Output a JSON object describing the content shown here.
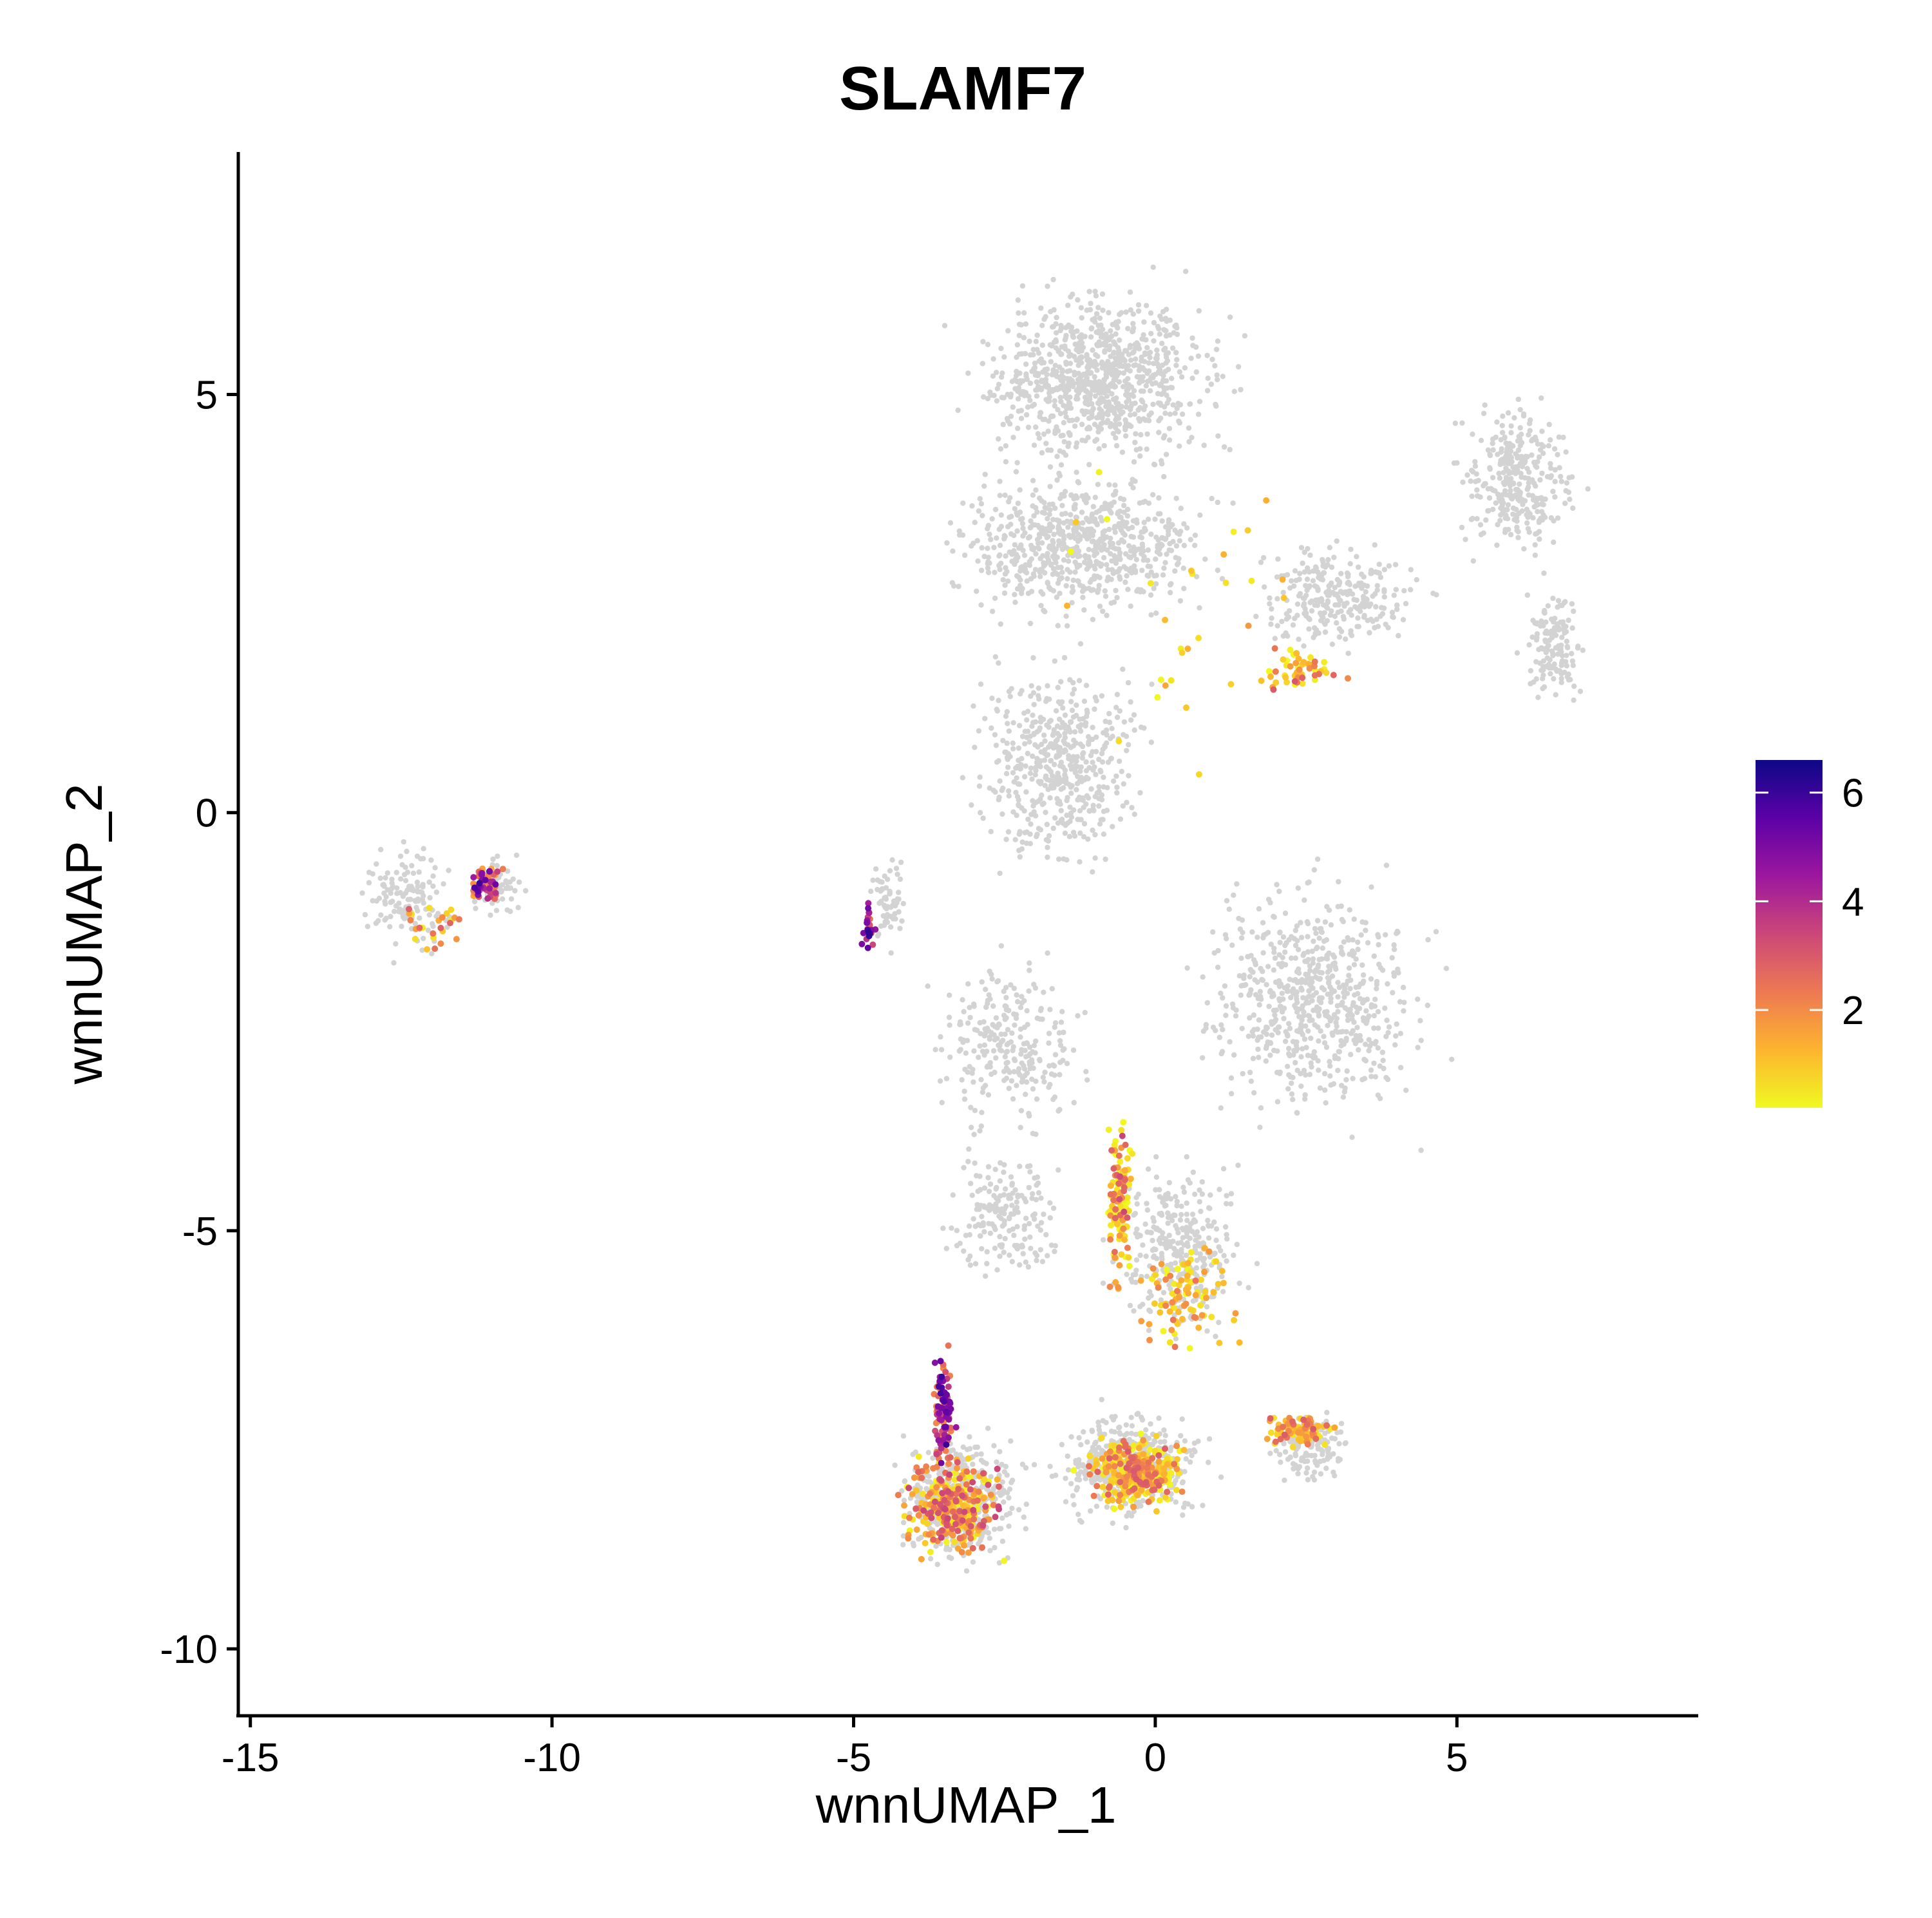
{
  "chart_data": {
    "type": "scatter",
    "title": "SLAMF7",
    "xlabel": "wnnUMAP_1",
    "ylabel": "wnnUMAP_2",
    "xlim": [
      -15.2,
      9.0
    ],
    "ylim": [
      -10.8,
      7.9
    ],
    "xticks": [
      {
        "value": -15,
        "label": "-15"
      },
      {
        "value": -10,
        "label": "-10"
      },
      {
        "value": -5,
        "label": "-5"
      },
      {
        "value": 0,
        "label": "0"
      },
      {
        "value": 5,
        "label": "5"
      }
    ],
    "yticks": [
      {
        "value": 5,
        "label": "5"
      },
      {
        "value": 0,
        "label": "0"
      },
      {
        "value": -5,
        "label": "-5"
      },
      {
        "value": -10,
        "label": "-10"
      }
    ],
    "grid": false,
    "background_color": "#d3d3d3",
    "colorscale": [
      "#f0f921",
      "#fdb42f",
      "#ed7953",
      "#cc4778",
      "#9c179e",
      "#5c01a6",
      "#0d0887"
    ],
    "legend": {
      "position": "right",
      "min": 0.2,
      "max": 6.6,
      "ticks": [
        {
          "value": 2,
          "label": "2"
        },
        {
          "value": 4,
          "label": "4"
        },
        {
          "value": 6,
          "label": "6"
        }
      ]
    },
    "background_regions": [
      {
        "name": "left-island",
        "cx": -12.4,
        "cy": -1.0,
        "rx": 1.1,
        "ry": 0.95,
        "n": 140
      },
      {
        "name": "left-island-right",
        "cx": -10.9,
        "cy": -0.9,
        "rx": 0.6,
        "ry": 0.55,
        "n": 70
      },
      {
        "name": "small-spur",
        "cx": -4.4,
        "cy": -1.1,
        "rx": 0.5,
        "ry": 0.85,
        "n": 60
      },
      {
        "name": "top-main-upper",
        "cx": -0.9,
        "cy": 5.2,
        "rx": 3.1,
        "ry": 1.6,
        "n": 900
      },
      {
        "name": "top-main-lower",
        "cx": -1.2,
        "cy": 3.2,
        "rx": 3.3,
        "ry": 1.3,
        "n": 700
      },
      {
        "name": "top-main-stalk",
        "cx": -1.6,
        "cy": 0.6,
        "rx": 2.2,
        "ry": 1.9,
        "n": 500
      },
      {
        "name": "right-lobe",
        "cx": 6.0,
        "cy": 4.0,
        "rx": 1.5,
        "ry": 1.4,
        "n": 320
      },
      {
        "name": "right-lobe-arm",
        "cx": 6.6,
        "cy": 2.0,
        "rx": 0.8,
        "ry": 1.1,
        "n": 140
      },
      {
        "name": "right-bridge",
        "cx": 3.0,
        "cy": 2.6,
        "rx": 2.2,
        "ry": 1.0,
        "n": 280
      },
      {
        "name": "middle-right",
        "cx": 2.6,
        "cy": -2.2,
        "rx": 2.8,
        "ry": 2.2,
        "n": 650
      },
      {
        "name": "middle-left",
        "cx": -2.4,
        "cy": -2.8,
        "rx": 1.9,
        "ry": 1.6,
        "n": 260
      },
      {
        "name": "lower-stalk",
        "cx": -2.5,
        "cy": -4.8,
        "rx": 1.4,
        "ry": 1.2,
        "n": 180
      },
      {
        "name": "lower-right-stalk",
        "cx": 0.4,
        "cy": -5.2,
        "rx": 1.7,
        "ry": 1.6,
        "n": 320
      },
      {
        "name": "bottom-left",
        "cx": -3.2,
        "cy": -8.2,
        "rx": 1.6,
        "ry": 1.2,
        "n": 420
      },
      {
        "name": "bottom-center",
        "cx": -0.4,
        "cy": -7.8,
        "rx": 1.9,
        "ry": 1.0,
        "n": 420
      },
      {
        "name": "bottom-right",
        "cx": 2.6,
        "cy": -7.6,
        "rx": 1.0,
        "ry": 0.7,
        "n": 130
      }
    ],
    "expression_regions": [
      {
        "name": "left-island-hot",
        "cx": -11.1,
        "cy": -0.85,
        "rx": 0.45,
        "ry": 0.4,
        "n": 70,
        "vmin": 1.5,
        "vmax": 6.0
      },
      {
        "name": "left-island-warm",
        "cx": -12.0,
        "cy": -1.3,
        "rx": 0.9,
        "ry": 0.45,
        "n": 25,
        "vmin": 0.2,
        "vmax": 3.0
      },
      {
        "name": "spur-hot",
        "cx": -4.75,
        "cy": -1.4,
        "rx": 0.18,
        "ry": 0.45,
        "n": 24,
        "vmin": 2.5,
        "vmax": 6.5
      },
      {
        "name": "right-bridge-warm",
        "cx": 2.4,
        "cy": 1.7,
        "rx": 1.0,
        "ry": 0.45,
        "n": 55,
        "vmin": 0.2,
        "vmax": 3.2
      },
      {
        "name": "stalk-warm",
        "cx": -0.6,
        "cy": -4.6,
        "rx": 0.35,
        "ry": 1.6,
        "n": 120,
        "vmin": 0.2,
        "vmax": 3.5
      },
      {
        "name": "stalk-spread",
        "cx": 0.5,
        "cy": -5.8,
        "rx": 1.3,
        "ry": 1.0,
        "n": 90,
        "vmin": 0.2,
        "vmax": 2.5
      },
      {
        "name": "bottom-left-hot",
        "cx": -3.5,
        "cy": -7.2,
        "rx": 0.25,
        "ry": 1.0,
        "n": 110,
        "vmin": 2.0,
        "vmax": 6.2
      },
      {
        "name": "bottom-left-warm",
        "cx": -3.3,
        "cy": -8.3,
        "rx": 1.3,
        "ry": 0.9,
        "n": 320,
        "vmin": 0.2,
        "vmax": 3.5
      },
      {
        "name": "bottom-center-warm",
        "cx": -0.3,
        "cy": -7.9,
        "rx": 1.2,
        "ry": 0.65,
        "n": 320,
        "vmin": 0.2,
        "vmax": 3.0
      },
      {
        "name": "bottom-right-warm",
        "cx": 2.4,
        "cy": -7.4,
        "rx": 0.9,
        "ry": 0.35,
        "n": 90,
        "vmin": 0.5,
        "vmax": 3.0
      },
      {
        "name": "scattered-top",
        "cx": 0.5,
        "cy": 2.5,
        "rx": 3.5,
        "ry": 3.0,
        "n": 30,
        "vmin": 0.2,
        "vmax": 2.0
      }
    ]
  }
}
